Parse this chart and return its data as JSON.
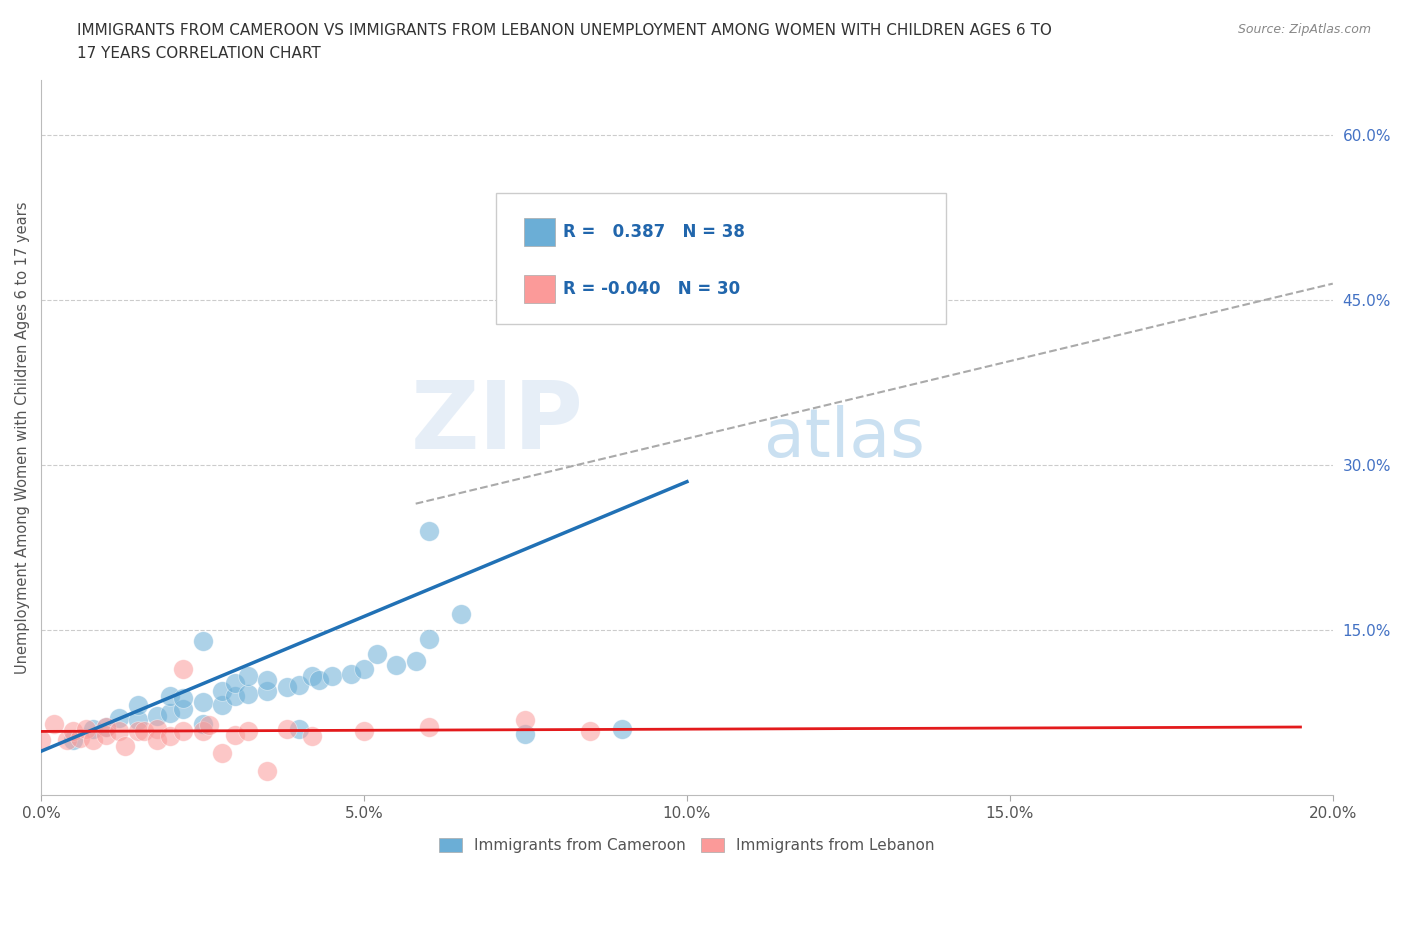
{
  "title_line1": "IMMIGRANTS FROM CAMEROON VS IMMIGRANTS FROM LEBANON UNEMPLOYMENT AMONG WOMEN WITH CHILDREN AGES 6 TO",
  "title_line2": "17 YEARS CORRELATION CHART",
  "source": "Source: ZipAtlas.com",
  "ylabel": "Unemployment Among Women with Children Ages 6 to 17 years",
  "xlim": [
    0.0,
    0.2
  ],
  "ylim": [
    0.0,
    0.65
  ],
  "xticks": [
    0.0,
    0.05,
    0.1,
    0.15,
    0.2
  ],
  "yticks_right": [
    0.15,
    0.3,
    0.45,
    0.6
  ],
  "ytick_labels_right": [
    "15.0%",
    "30.0%",
    "45.0%",
    "60.0%"
  ],
  "xtick_labels": [
    "0.0%",
    "5.0%",
    "10.0%",
    "15.0%",
    "20.0%"
  ],
  "cameroon_color": "#6baed6",
  "cameroon_line_color": "#2171b5",
  "lebanon_color": "#fb9a99",
  "lebanon_line_color": "#e31a1c",
  "dash_color": "#aaaaaa",
  "cameroon_R": 0.387,
  "cameroon_N": 38,
  "lebanon_R": -0.04,
  "lebanon_N": 30,
  "legend_label_cameroon": "Immigrants from Cameroon",
  "legend_label_lebanon": "Immigrants from Lebanon",
  "watermark_zip": "ZIP",
  "watermark_atlas": "atlas",
  "cameroon_x": [
    0.005,
    0.008,
    0.01,
    0.012,
    0.015,
    0.015,
    0.018,
    0.02,
    0.02,
    0.022,
    0.022,
    0.025,
    0.025,
    0.025,
    0.028,
    0.028,
    0.03,
    0.03,
    0.032,
    0.032,
    0.035,
    0.035,
    0.038,
    0.04,
    0.042,
    0.043,
    0.045,
    0.048,
    0.05,
    0.052,
    0.055,
    0.058,
    0.06,
    0.065,
    0.04,
    0.075,
    0.09,
    0.06
  ],
  "cameroon_y": [
    0.05,
    0.06,
    0.062,
    0.07,
    0.068,
    0.082,
    0.072,
    0.075,
    0.09,
    0.078,
    0.088,
    0.065,
    0.085,
    0.14,
    0.082,
    0.095,
    0.09,
    0.102,
    0.092,
    0.108,
    0.095,
    0.105,
    0.098,
    0.1,
    0.108,
    0.105,
    0.108,
    0.11,
    0.115,
    0.128,
    0.118,
    0.122,
    0.142,
    0.165,
    0.06,
    0.056,
    0.06,
    0.24
  ],
  "lebanon_x": [
    0.0,
    0.002,
    0.004,
    0.005,
    0.006,
    0.007,
    0.008,
    0.01,
    0.01,
    0.012,
    0.013,
    0.015,
    0.016,
    0.018,
    0.018,
    0.02,
    0.022,
    0.022,
    0.025,
    0.026,
    0.028,
    0.03,
    0.032,
    0.035,
    0.038,
    0.042,
    0.05,
    0.06,
    0.075,
    0.085
  ],
  "lebanon_y": [
    0.05,
    0.065,
    0.05,
    0.058,
    0.052,
    0.06,
    0.05,
    0.062,
    0.055,
    0.058,
    0.045,
    0.058,
    0.058,
    0.06,
    0.05,
    0.054,
    0.058,
    0.115,
    0.058,
    0.064,
    0.038,
    0.055,
    0.058,
    0.022,
    0.06,
    0.054,
    0.058,
    0.062,
    0.068,
    0.058
  ],
  "blue_line_x": [
    0.0,
    0.1
  ],
  "blue_line_y": [
    0.04,
    0.285
  ],
  "pink_line_x": [
    0.0,
    0.195
  ],
  "pink_line_y": [
    0.058,
    0.062
  ],
  "dash_line_x": [
    0.058,
    0.2
  ],
  "dash_line_y": [
    0.265,
    0.465
  ]
}
